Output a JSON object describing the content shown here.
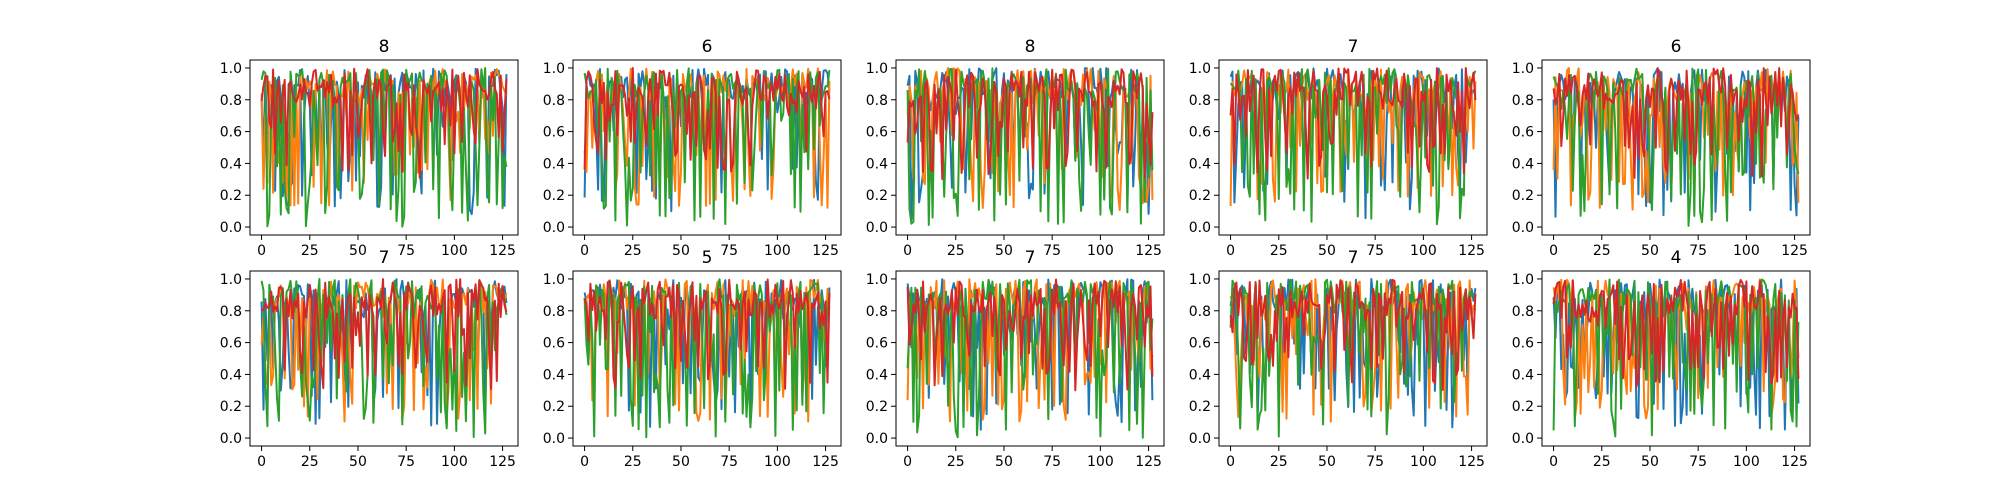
{
  "figure": {
    "titles": [
      "8",
      "6",
      "8",
      "7",
      "6",
      "7",
      "5",
      "7",
      "7",
      "4"
    ]
  },
  "chart_data": [
    {
      "type": "line",
      "title": "8",
      "xlim": [
        -6,
        133
      ],
      "ylim": [
        -0.05,
        1.05
      ],
      "xticks": [
        "0",
        "25",
        "50",
        "75",
        "100",
        "125"
      ],
      "yticks": [
        "0.0",
        "0.2",
        "0.4",
        "0.6",
        "0.8",
        "1.0"
      ],
      "n_points": 128,
      "grid": false,
      "series": [
        {
          "color": "#1f77b4"
        },
        {
          "color": "#ff7f0e"
        },
        {
          "color": "#2ca02c"
        },
        {
          "color": "#d62728"
        }
      ]
    },
    {
      "type": "line",
      "title": "6",
      "xlim": [
        -6,
        133
      ],
      "ylim": [
        -0.05,
        1.05
      ],
      "xticks": [
        "0",
        "25",
        "50",
        "75",
        "100",
        "125"
      ],
      "yticks": [
        "0.0",
        "0.2",
        "0.4",
        "0.6",
        "0.8",
        "1.0"
      ],
      "n_points": 128,
      "grid": false,
      "series": [
        {
          "color": "#1f77b4"
        },
        {
          "color": "#ff7f0e"
        },
        {
          "color": "#2ca02c"
        },
        {
          "color": "#d62728"
        }
      ]
    },
    {
      "type": "line",
      "title": "8",
      "xlim": [
        -6,
        133
      ],
      "ylim": [
        -0.05,
        1.05
      ],
      "xticks": [
        "0",
        "25",
        "50",
        "75",
        "100",
        "125"
      ],
      "yticks": [
        "0.0",
        "0.2",
        "0.4",
        "0.6",
        "0.8",
        "1.0"
      ],
      "n_points": 128,
      "grid": false,
      "series": [
        {
          "color": "#1f77b4"
        },
        {
          "color": "#ff7f0e"
        },
        {
          "color": "#2ca02c"
        },
        {
          "color": "#d62728"
        }
      ]
    },
    {
      "type": "line",
      "title": "7",
      "xlim": [
        -6,
        133
      ],
      "ylim": [
        -0.05,
        1.05
      ],
      "xticks": [
        "0",
        "25",
        "50",
        "75",
        "100",
        "125"
      ],
      "yticks": [
        "0.0",
        "0.2",
        "0.4",
        "0.6",
        "0.8",
        "1.0"
      ],
      "n_points": 128,
      "grid": false,
      "series": [
        {
          "color": "#1f77b4"
        },
        {
          "color": "#ff7f0e"
        },
        {
          "color": "#2ca02c"
        },
        {
          "color": "#d62728"
        }
      ]
    },
    {
      "type": "line",
      "title": "6",
      "xlim": [
        -6,
        133
      ],
      "ylim": [
        -0.05,
        1.05
      ],
      "xticks": [
        "0",
        "25",
        "50",
        "75",
        "100",
        "125"
      ],
      "yticks": [
        "0.0",
        "0.2",
        "0.4",
        "0.6",
        "0.8",
        "1.0"
      ],
      "n_points": 128,
      "grid": false,
      "series": [
        {
          "color": "#1f77b4"
        },
        {
          "color": "#ff7f0e"
        },
        {
          "color": "#2ca02c"
        },
        {
          "color": "#d62728"
        }
      ]
    },
    {
      "type": "line",
      "title": "7",
      "xlim": [
        -6,
        133
      ],
      "ylim": [
        -0.05,
        1.05
      ],
      "xticks": [
        "0",
        "25",
        "50",
        "75",
        "100",
        "125"
      ],
      "yticks": [
        "0.0",
        "0.2",
        "0.4",
        "0.6",
        "0.8",
        "1.0"
      ],
      "n_points": 128,
      "grid": false,
      "series": [
        {
          "color": "#1f77b4"
        },
        {
          "color": "#ff7f0e"
        },
        {
          "color": "#2ca02c"
        },
        {
          "color": "#d62728"
        }
      ]
    },
    {
      "type": "line",
      "title": "5",
      "xlim": [
        -6,
        133
      ],
      "ylim": [
        -0.05,
        1.05
      ],
      "xticks": [
        "0",
        "25",
        "50",
        "75",
        "100",
        "125"
      ],
      "yticks": [
        "0.0",
        "0.2",
        "0.4",
        "0.6",
        "0.8",
        "1.0"
      ],
      "n_points": 128,
      "grid": false,
      "series": [
        {
          "color": "#1f77b4"
        },
        {
          "color": "#ff7f0e"
        },
        {
          "color": "#2ca02c"
        },
        {
          "color": "#d62728"
        }
      ]
    },
    {
      "type": "line",
      "title": "7",
      "xlim": [
        -6,
        133
      ],
      "ylim": [
        -0.05,
        1.05
      ],
      "xticks": [
        "0",
        "25",
        "50",
        "75",
        "100",
        "125"
      ],
      "yticks": [
        "0.0",
        "0.2",
        "0.4",
        "0.6",
        "0.8",
        "1.0"
      ],
      "n_points": 128,
      "grid": false,
      "series": [
        {
          "color": "#1f77b4"
        },
        {
          "color": "#ff7f0e"
        },
        {
          "color": "#2ca02c"
        },
        {
          "color": "#d62728"
        }
      ]
    },
    {
      "type": "line",
      "title": "7",
      "xlim": [
        -6,
        133
      ],
      "ylim": [
        -0.05,
        1.05
      ],
      "xticks": [
        "0",
        "25",
        "50",
        "75",
        "100",
        "125"
      ],
      "yticks": [
        "0.0",
        "0.2",
        "0.4",
        "0.6",
        "0.8",
        "1.0"
      ],
      "n_points": 128,
      "grid": false,
      "series": [
        {
          "color": "#1f77b4"
        },
        {
          "color": "#ff7f0e"
        },
        {
          "color": "#2ca02c"
        },
        {
          "color": "#d62728"
        }
      ]
    },
    {
      "type": "line",
      "title": "4",
      "xlim": [
        -6,
        133
      ],
      "ylim": [
        -0.05,
        1.05
      ],
      "xticks": [
        "0",
        "25",
        "50",
        "75",
        "100",
        "125"
      ],
      "yticks": [
        "0.0",
        "0.2",
        "0.4",
        "0.6",
        "0.8",
        "1.0"
      ],
      "n_points": 128,
      "grid": false,
      "series": [
        {
          "color": "#1f77b4"
        },
        {
          "color": "#ff7f0e"
        },
        {
          "color": "#2ca02c"
        },
        {
          "color": "#d62728"
        }
      ]
    }
  ]
}
